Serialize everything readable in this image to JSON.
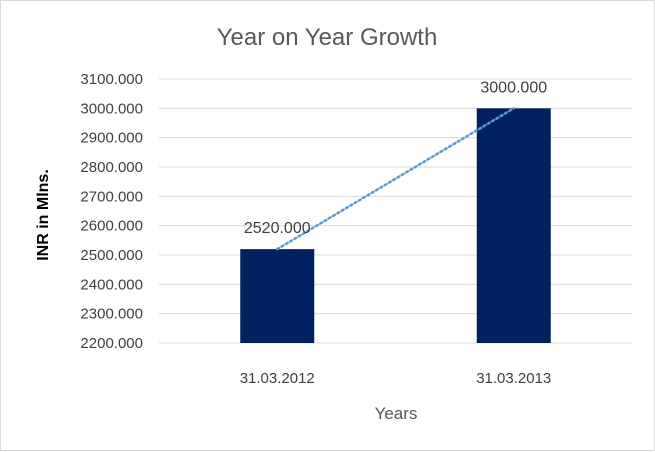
{
  "chart_data": {
    "type": "bar",
    "title": "Year on Year Growth",
    "xlabel": "Years",
    "ylabel": "INR in Mlns.",
    "categories": [
      "31.03.2012",
      "31.03.2013"
    ],
    "values": [
      2520,
      3000
    ],
    "data_labels": [
      "2520.000",
      "3000.000"
    ],
    "ylim": [
      2200,
      3100
    ],
    "y_ticks": [
      2200,
      2300,
      2400,
      2500,
      2600,
      2700,
      2800,
      2900,
      3000,
      3100
    ],
    "y_tick_labels": [
      "2200.000",
      "2300.000",
      "2400.000",
      "2500.000",
      "2600.000",
      "2700.000",
      "2800.000",
      "2900.000",
      "3000.000",
      "3100.000"
    ],
    "trendline": {
      "type": "linear",
      "style": "dotted"
    },
    "grid": true,
    "legend": "none",
    "colors": {
      "bar": "#002060",
      "trendline": "#5b9bd5",
      "grid": "#d9d9d9"
    }
  }
}
